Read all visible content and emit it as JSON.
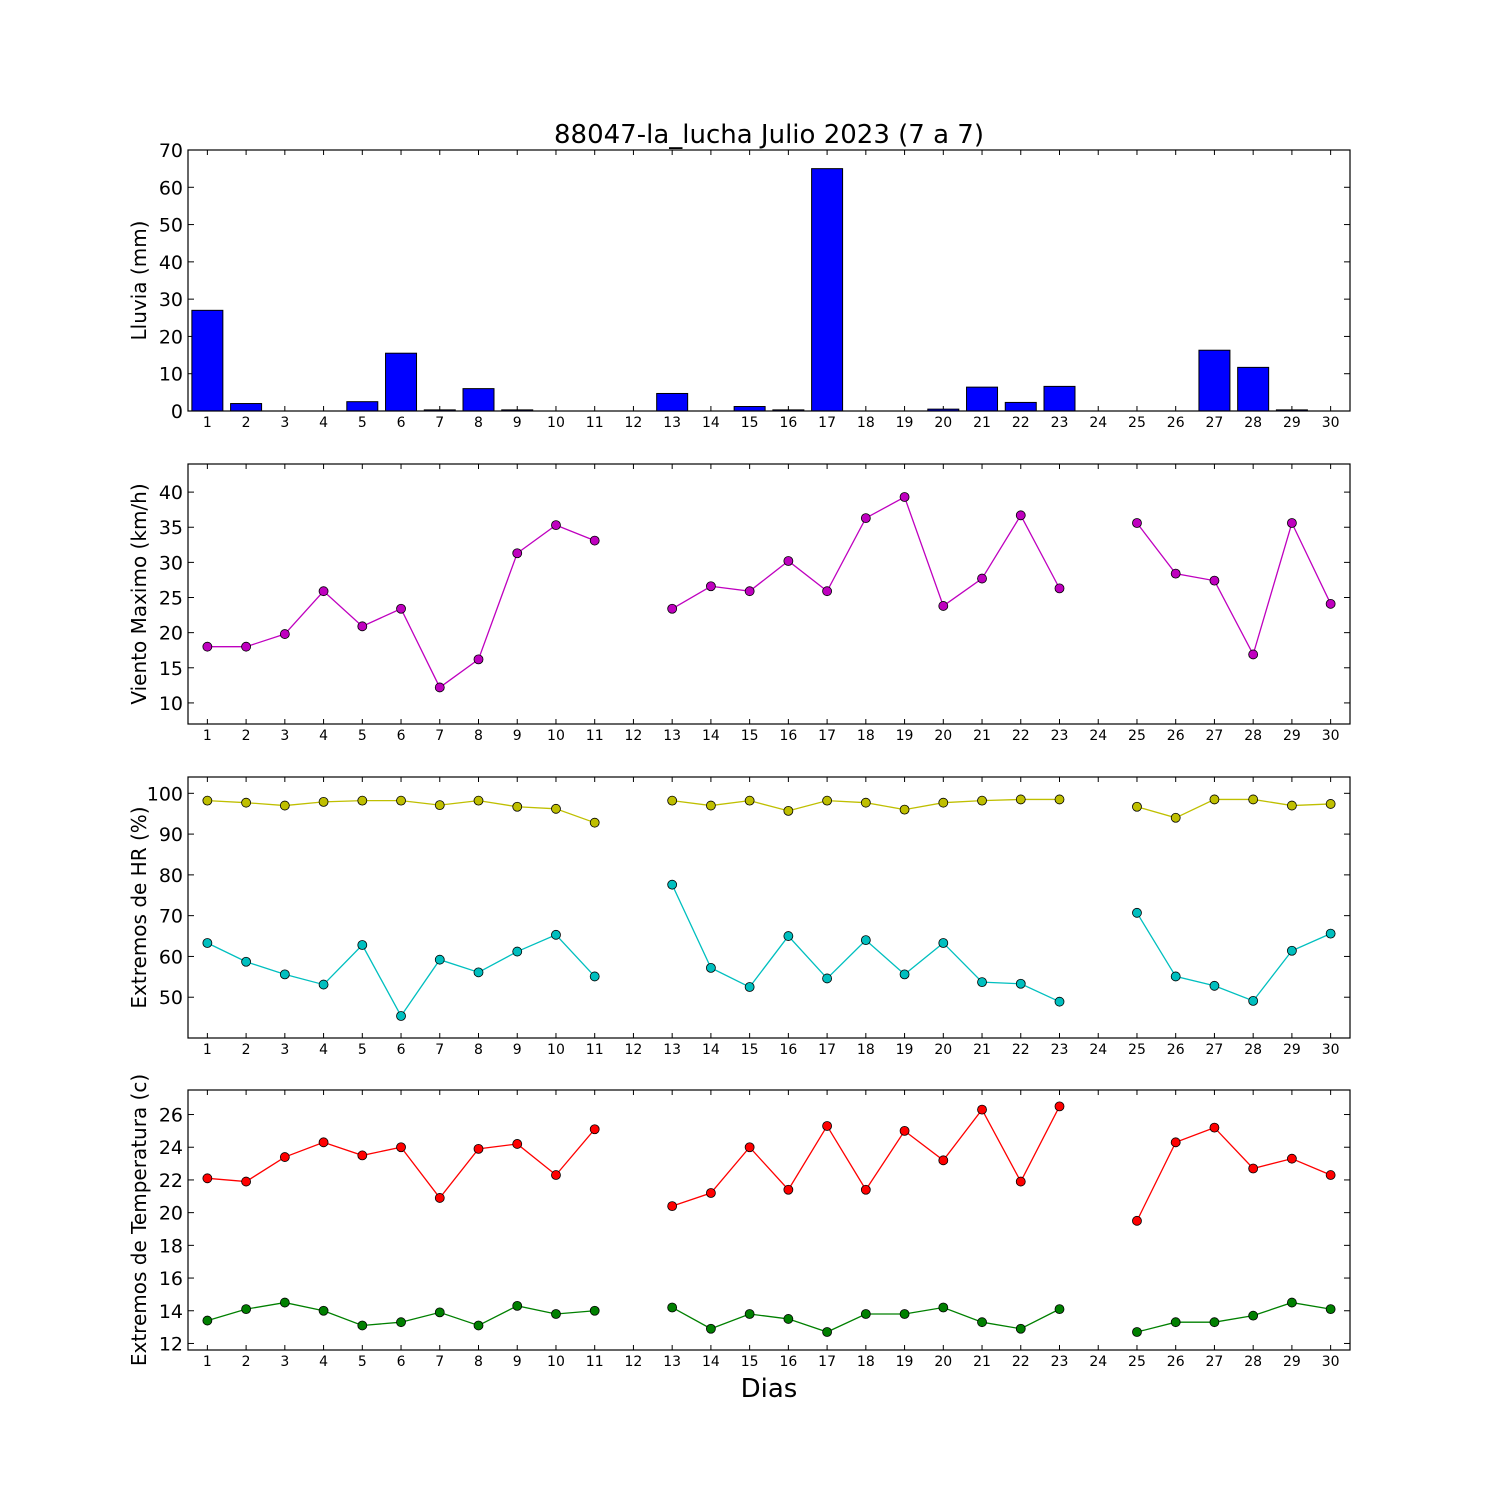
{
  "title": "88047-la_lucha Julio 2023  (7 a 7)",
  "xlabel": "Dias",
  "days": [
    1,
    2,
    3,
    4,
    5,
    6,
    7,
    8,
    9,
    10,
    11,
    12,
    13,
    14,
    15,
    16,
    17,
    18,
    19,
    20,
    21,
    22,
    23,
    24,
    25,
    26,
    27,
    28,
    29,
    30
  ],
  "colors": {
    "rain": "#0000ff",
    "wind": "#bf00bf",
    "hr_max": "#bfbf00",
    "hr_min": "#00bfbf",
    "temp_max": "#ff0000",
    "temp_min": "#008000"
  },
  "chart_data": [
    {
      "type": "bar",
      "ylabel": "Lluvia (mm)",
      "ylim": [
        0,
        70
      ],
      "yticks": [
        0,
        10,
        20,
        30,
        40,
        50,
        60,
        70
      ],
      "categories": [
        1,
        2,
        3,
        4,
        5,
        6,
        7,
        8,
        9,
        10,
        11,
        12,
        13,
        14,
        15,
        16,
        17,
        18,
        19,
        20,
        21,
        22,
        23,
        24,
        25,
        26,
        27,
        28,
        29,
        30
      ],
      "values": [
        27,
        2,
        0,
        0,
        2.5,
        15.5,
        0.3,
        6,
        0.3,
        0,
        0,
        0,
        4.7,
        0,
        1.2,
        0.3,
        65,
        0,
        0,
        0.5,
        6.4,
        2.3,
        6.6,
        0,
        0,
        0,
        16.3,
        11.7,
        0.3,
        0
      ]
    },
    {
      "type": "line",
      "ylabel": "Viento Maximo (km/h)",
      "ylim": [
        7,
        44
      ],
      "yticks": [
        10,
        15,
        20,
        25,
        30,
        35,
        40
      ],
      "x": [
        1,
        2,
        3,
        4,
        5,
        6,
        7,
        8,
        9,
        10,
        11,
        12,
        13,
        14,
        15,
        16,
        17,
        18,
        19,
        20,
        21,
        22,
        23,
        24,
        25,
        26,
        27,
        28,
        29,
        30
      ],
      "series": [
        {
          "values": [
            18,
            18,
            19.8,
            25.9,
            20.9,
            23.4,
            12.2,
            16.2,
            31.3,
            35.3,
            33.1,
            null,
            23.4,
            26.6,
            25.9,
            30.2,
            25.9,
            36.3,
            39.3,
            23.8,
            27.7,
            36.7,
            26.3,
            null,
            35.6,
            28.4,
            27.4,
            16.9,
            35.6,
            24.1
          ]
        }
      ]
    },
    {
      "type": "line",
      "ylabel": "Extremos de HR (%)",
      "ylim": [
        40,
        104
      ],
      "yticks": [
        50,
        60,
        70,
        80,
        90,
        100
      ],
      "x": [
        1,
        2,
        3,
        4,
        5,
        6,
        7,
        8,
        9,
        10,
        11,
        12,
        13,
        14,
        15,
        16,
        17,
        18,
        19,
        20,
        21,
        22,
        23,
        24,
        25,
        26,
        27,
        28,
        29,
        30
      ],
      "series": [
        {
          "values": [
            98.2,
            97.7,
            97,
            97.9,
            98.2,
            98.2,
            97.1,
            98.2,
            96.7,
            96.2,
            92.8,
            null,
            98.2,
            97,
            98.2,
            95.7,
            98.2,
            97.7,
            96,
            97.7,
            98.2,
            98.5,
            98.5,
            null,
            96.7,
            94,
            98.5,
            98.5,
            97,
            97.4
          ]
        },
        {
          "values": [
            63.3,
            58.7,
            55.6,
            53.1,
            62.8,
            45.4,
            59.2,
            56.1,
            61.2,
            65.3,
            55.1,
            null,
            77.6,
            57.2,
            52.5,
            65,
            54.6,
            64,
            55.6,
            63.3,
            53.7,
            53.3,
            48.9,
            null,
            70.7,
            55.1,
            52.8,
            49.1,
            61.4,
            65.6
          ]
        }
      ]
    },
    {
      "type": "line",
      "ylabel": "Extremos de Temperatura (c)",
      "ylim": [
        11.6,
        27.5
      ],
      "yticks": [
        12,
        14,
        16,
        18,
        20,
        22,
        24,
        26
      ],
      "x": [
        1,
        2,
        3,
        4,
        5,
        6,
        7,
        8,
        9,
        10,
        11,
        12,
        13,
        14,
        15,
        16,
        17,
        18,
        19,
        20,
        21,
        22,
        23,
        24,
        25,
        26,
        27,
        28,
        29,
        30
      ],
      "series": [
        {
          "values": [
            22.1,
            21.9,
            23.4,
            24.3,
            23.5,
            24,
            20.9,
            23.9,
            24.2,
            22.3,
            25.1,
            null,
            20.4,
            21.2,
            24,
            21.4,
            25.3,
            21.4,
            25,
            23.2,
            26.3,
            21.9,
            26.5,
            null,
            19.5,
            24.3,
            25.2,
            22.7,
            23.3,
            22.3
          ]
        },
        {
          "values": [
            13.4,
            14.1,
            14.5,
            14,
            13.1,
            13.3,
            13.9,
            13.1,
            14.3,
            13.8,
            14,
            null,
            14.2,
            12.9,
            13.8,
            13.5,
            12.7,
            13.8,
            13.8,
            14.2,
            13.3,
            12.9,
            14.1,
            null,
            12.7,
            13.3,
            13.3,
            13.7,
            14.5,
            14.1
          ]
        }
      ]
    }
  ]
}
